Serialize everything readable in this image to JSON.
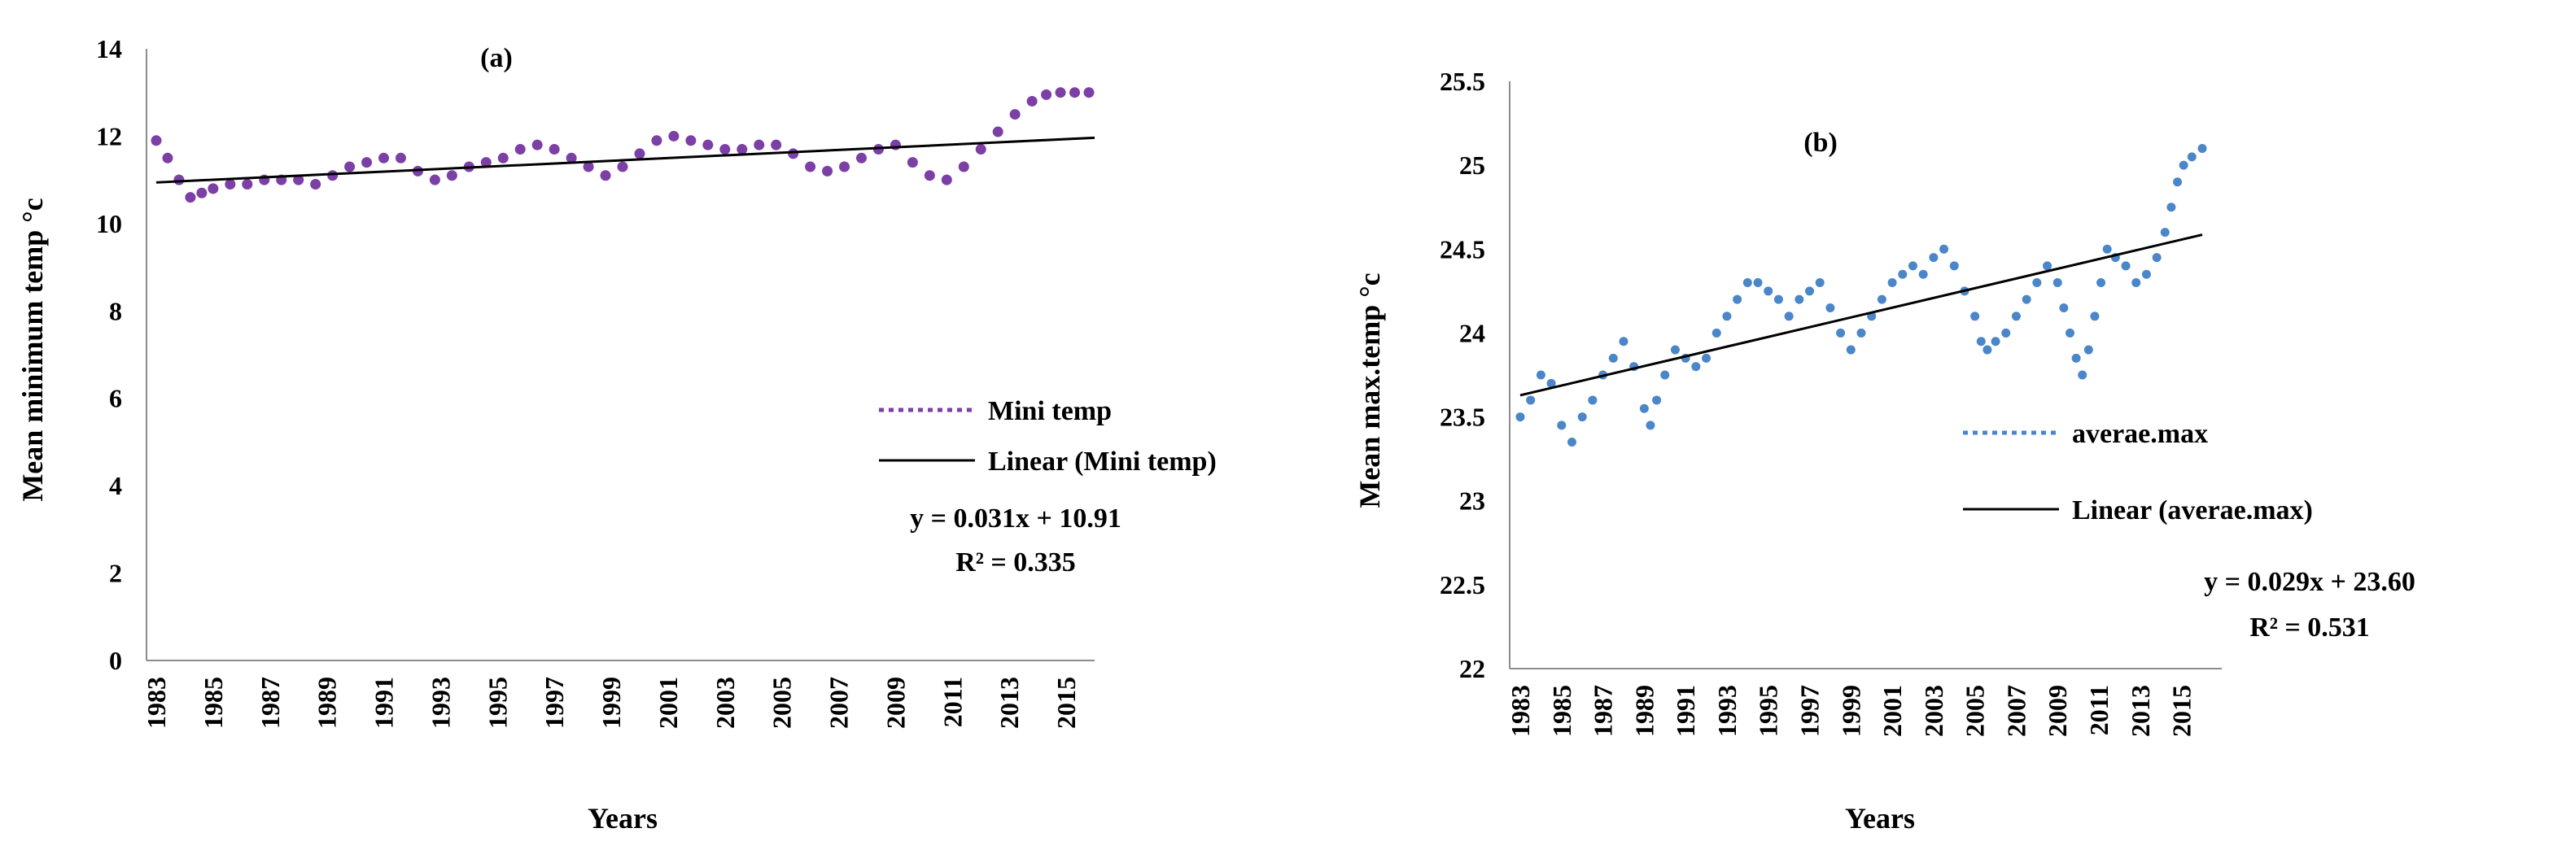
{
  "chart_data": [
    {
      "type": "scatter",
      "panel_label": "(a)",
      "xlabel": "Years",
      "ylabel": "Mean minimum temp °c",
      "ylim": [
        0,
        14
      ],
      "yticks": [
        "0",
        "2",
        "4",
        "6",
        "8",
        "10",
        "12",
        "14"
      ],
      "xtick_labels": [
        "1983",
        "1985",
        "1987",
        "1989",
        "1991",
        "1993",
        "1995",
        "1997",
        "1999",
        "2001",
        "2003",
        "2005",
        "2007",
        "2009",
        "2011",
        "2013",
        "2015"
      ],
      "xlim": [
        1983,
        2016
      ],
      "color": "#7b3fa6",
      "series": [
        {
          "name": "Mini temp",
          "x": [
            1983,
            1983.4,
            1983.8,
            1984.2,
            1984.6,
            1985,
            1985.6,
            1986.2,
            1986.8,
            1987.4,
            1988,
            1988.6,
            1989.2,
            1989.8,
            1990.4,
            1991,
            1991.6,
            1992.2,
            1992.8,
            1993.4,
            1994,
            1994.6,
            1995.2,
            1995.8,
            1996.4,
            1997,
            1997.6,
            1998.2,
            1998.8,
            1999.4,
            2000,
            2000.6,
            2001.2,
            2001.8,
            2002.4,
            2003,
            2003.6,
            2004.2,
            2004.8,
            2005.4,
            2006,
            2006.6,
            2007.2,
            2007.8,
            2008.4,
            2009,
            2009.6,
            2010.2,
            2010.8,
            2011.4,
            2012,
            2012.6,
            2013.2,
            2013.8,
            2014.3,
            2014.8,
            2015.3,
            2015.8
          ],
          "values": [
            11.9,
            11.5,
            11.0,
            10.6,
            10.7,
            10.8,
            10.9,
            10.9,
            11.0,
            11.0,
            11.0,
            10.9,
            11.1,
            11.3,
            11.4,
            11.5,
            11.5,
            11.2,
            11.0,
            11.1,
            11.3,
            11.4,
            11.5,
            11.7,
            11.8,
            11.7,
            11.5,
            11.3,
            11.1,
            11.3,
            11.6,
            11.9,
            12.0,
            11.9,
            11.8,
            11.7,
            11.7,
            11.8,
            11.8,
            11.6,
            11.3,
            11.2,
            11.3,
            11.5,
            11.7,
            11.8,
            11.4,
            11.1,
            11.0,
            11.3,
            11.7,
            12.1,
            12.5,
            12.8,
            12.95,
            13.0,
            13.0,
            13.0
          ]
        }
      ],
      "trendline": {
        "name": "Linear (Mini temp)",
        "slope": 0.031,
        "intercept": 10.91,
        "x0": 1983,
        "x1": 2016
      },
      "legend": {
        "placement": "right",
        "series_label": "Mini temp",
        "trend_label": "Linear (Mini temp)"
      },
      "equation": "y = 0.031x + 10.91",
      "r_squared": "R² = 0.335"
    },
    {
      "type": "scatter",
      "panel_label": "(b)",
      "xlabel": "Years",
      "ylabel": "Mean max.temp °c",
      "ylim": [
        22,
        25.5
      ],
      "yticks": [
        "22",
        "22.5",
        "23",
        "23.5",
        "24",
        "24.5",
        "25",
        "25.5"
      ],
      "xtick_labels": [
        "1983",
        "1985",
        "1987",
        "1989",
        "1991",
        "1993",
        "1995",
        "1997",
        "1999",
        "2001",
        "2003",
        "2005",
        "2007",
        "2009",
        "2011",
        "2013",
        "2015"
      ],
      "xlim": [
        1983,
        2016
      ],
      "color": "#4a86c8",
      "series": [
        {
          "name": "averae.max",
          "x": [
            1983,
            1983.5,
            1984,
            1984.5,
            1985,
            1985.5,
            1986,
            1986.5,
            1987,
            1987.5,
            1988,
            1988.5,
            1989,
            1989.3,
            1989.6,
            1990,
            1990.5,
            1991,
            1991.5,
            1992,
            1992.5,
            1993,
            1993.5,
            1994,
            1994.5,
            1995,
            1995.5,
            1996,
            1996.5,
            1997,
            1997.5,
            1998,
            1998.5,
            1999,
            1999.5,
            2000,
            2000.5,
            2001,
            2001.5,
            2002,
            2002.5,
            2003,
            2003.5,
            2004,
            2004.5,
            2005,
            2005.3,
            2005.6,
            2006,
            2006.5,
            2007,
            2007.5,
            2008,
            2008.5,
            2009,
            2009.3,
            2009.6,
            2009.9,
            2010.2,
            2010.5,
            2010.8,
            2011.1,
            2011.4,
            2011.8,
            2012.3,
            2012.8,
            2013.3,
            2013.8,
            2014.2,
            2014.5,
            2014.8,
            2015.1,
            2015.5,
            2016
          ],
          "values": [
            23.5,
            23.6,
            23.75,
            23.7,
            23.45,
            23.35,
            23.5,
            23.6,
            23.75,
            23.85,
            23.95,
            23.8,
            23.55,
            23.45,
            23.6,
            23.75,
            23.9,
            23.85,
            23.8,
            23.85,
            24.0,
            24.1,
            24.2,
            24.3,
            24.3,
            24.25,
            24.2,
            24.1,
            24.2,
            24.25,
            24.3,
            24.15,
            24.0,
            23.9,
            24.0,
            24.1,
            24.2,
            24.3,
            24.35,
            24.4,
            24.35,
            24.45,
            24.5,
            24.4,
            24.25,
            24.1,
            23.95,
            23.9,
            23.95,
            24.0,
            24.1,
            24.2,
            24.3,
            24.4,
            24.3,
            24.15,
            24.0,
            23.85,
            23.75,
            23.9,
            24.1,
            24.3,
            24.5,
            24.45,
            24.4,
            24.3,
            24.35,
            24.45,
            24.6,
            24.75,
            24.9,
            25.0,
            25.05,
            25.1
          ]
        }
      ],
      "trendline": {
        "name": "Linear (averae.max)",
        "slope": 0.029,
        "intercept": 23.6,
        "x0": 1983,
        "x1": 2016
      },
      "legend": {
        "placement": "right",
        "series_label": "averae.max",
        "trend_label": "Linear (averae.max)"
      },
      "equation": "y = 0.029x + 23.60",
      "r_squared": "R² = 0.531"
    }
  ]
}
